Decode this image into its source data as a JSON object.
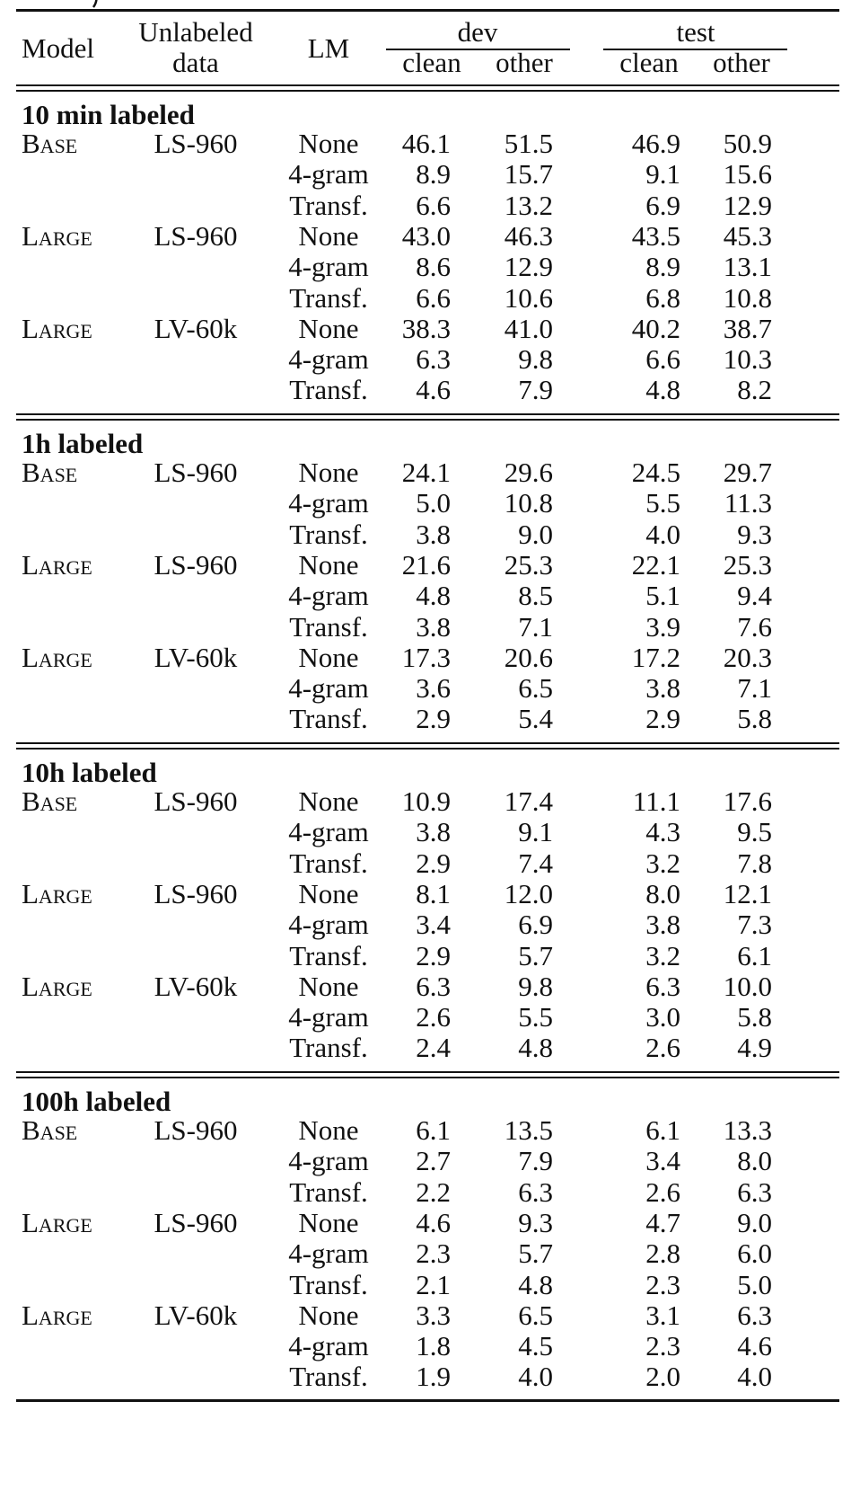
{
  "header": {
    "model": "Model",
    "unlabeled_1": "Unlabeled",
    "unlabeled_2": "data",
    "lm": "LM",
    "dev": "dev",
    "test": "test",
    "clean": "clean",
    "other": "other"
  },
  "sections": [
    {
      "title": "10 min labeled",
      "rows": [
        {
          "model": "Base",
          "data": "LS-960",
          "lm": "None",
          "dev_clean": "46.1",
          "dev_other": "51.5",
          "test_clean": "46.9",
          "test_other": "50.9"
        },
        {
          "model": "",
          "data": "",
          "lm": "4-gram",
          "dev_clean": "8.9",
          "dev_other": "15.7",
          "test_clean": "9.1",
          "test_other": "15.6"
        },
        {
          "model": "",
          "data": "",
          "lm": "Transf.",
          "dev_clean": "6.6",
          "dev_other": "13.2",
          "test_clean": "6.9",
          "test_other": "12.9"
        },
        {
          "model": "Large",
          "data": "LS-960",
          "lm": "None",
          "dev_clean": "43.0",
          "dev_other": "46.3",
          "test_clean": "43.5",
          "test_other": "45.3"
        },
        {
          "model": "",
          "data": "",
          "lm": "4-gram",
          "dev_clean": "8.6",
          "dev_other": "12.9",
          "test_clean": "8.9",
          "test_other": "13.1"
        },
        {
          "model": "",
          "data": "",
          "lm": "Transf.",
          "dev_clean": "6.6",
          "dev_other": "10.6",
          "test_clean": "6.8",
          "test_other": "10.8"
        },
        {
          "model": "Large",
          "data": "LV-60k",
          "lm": "None",
          "dev_clean": "38.3",
          "dev_other": "41.0",
          "test_clean": "40.2",
          "test_other": "38.7"
        },
        {
          "model": "",
          "data": "",
          "lm": "4-gram",
          "dev_clean": "6.3",
          "dev_other": "9.8",
          "test_clean": "6.6",
          "test_other": "10.3"
        },
        {
          "model": "",
          "data": "",
          "lm": "Transf.",
          "dev_clean": "4.6",
          "dev_other": "7.9",
          "test_clean": "4.8",
          "test_other": "8.2"
        }
      ]
    },
    {
      "title": "1h labeled",
      "rows": [
        {
          "model": "Base",
          "data": "LS-960",
          "lm": "None",
          "dev_clean": "24.1",
          "dev_other": "29.6",
          "test_clean": "24.5",
          "test_other": "29.7"
        },
        {
          "model": "",
          "data": "",
          "lm": "4-gram",
          "dev_clean": "5.0",
          "dev_other": "10.8",
          "test_clean": "5.5",
          "test_other": "11.3"
        },
        {
          "model": "",
          "data": "",
          "lm": "Transf.",
          "dev_clean": "3.8",
          "dev_other": "9.0",
          "test_clean": "4.0",
          "test_other": "9.3"
        },
        {
          "model": "Large",
          "data": "LS-960",
          "lm": "None",
          "dev_clean": "21.6",
          "dev_other": "25.3",
          "test_clean": "22.1",
          "test_other": "25.3"
        },
        {
          "model": "",
          "data": "",
          "lm": "4-gram",
          "dev_clean": "4.8",
          "dev_other": "8.5",
          "test_clean": "5.1",
          "test_other": "9.4"
        },
        {
          "model": "",
          "data": "",
          "lm": "Transf.",
          "dev_clean": "3.8",
          "dev_other": "7.1",
          "test_clean": "3.9",
          "test_other": "7.6"
        },
        {
          "model": "Large",
          "data": "LV-60k",
          "lm": "None",
          "dev_clean": "17.3",
          "dev_other": "20.6",
          "test_clean": "17.2",
          "test_other": "20.3"
        },
        {
          "model": "",
          "data": "",
          "lm": "4-gram",
          "dev_clean": "3.6",
          "dev_other": "6.5",
          "test_clean": "3.8",
          "test_other": "7.1"
        },
        {
          "model": "",
          "data": "",
          "lm": "Transf.",
          "dev_clean": "2.9",
          "dev_other": "5.4",
          "test_clean": "2.9",
          "test_other": "5.8"
        }
      ]
    },
    {
      "title": "10h labeled",
      "rows": [
        {
          "model": "Base",
          "data": "LS-960",
          "lm": "None",
          "dev_clean": "10.9",
          "dev_other": "17.4",
          "test_clean": "11.1",
          "test_other": "17.6"
        },
        {
          "model": "",
          "data": "",
          "lm": "4-gram",
          "dev_clean": "3.8",
          "dev_other": "9.1",
          "test_clean": "4.3",
          "test_other": "9.5"
        },
        {
          "model": "",
          "data": "",
          "lm": "Transf.",
          "dev_clean": "2.9",
          "dev_other": "7.4",
          "test_clean": "3.2",
          "test_other": "7.8"
        },
        {
          "model": "Large",
          "data": "LS-960",
          "lm": "None",
          "dev_clean": "8.1",
          "dev_other": "12.0",
          "test_clean": "8.0",
          "test_other": "12.1"
        },
        {
          "model": "",
          "data": "",
          "lm": "4-gram",
          "dev_clean": "3.4",
          "dev_other": "6.9",
          "test_clean": "3.8",
          "test_other": "7.3"
        },
        {
          "model": "",
          "data": "",
          "lm": "Transf.",
          "dev_clean": "2.9",
          "dev_other": "5.7",
          "test_clean": "3.2",
          "test_other": "6.1"
        },
        {
          "model": "Large",
          "data": "LV-60k",
          "lm": "None",
          "dev_clean": "6.3",
          "dev_other": "9.8",
          "test_clean": "6.3",
          "test_other": "10.0"
        },
        {
          "model": "",
          "data": "",
          "lm": "4-gram",
          "dev_clean": "2.6",
          "dev_other": "5.5",
          "test_clean": "3.0",
          "test_other": "5.8"
        },
        {
          "model": "",
          "data": "",
          "lm": "Transf.",
          "dev_clean": "2.4",
          "dev_other": "4.8",
          "test_clean": "2.6",
          "test_other": "4.9"
        }
      ]
    },
    {
      "title": "100h labeled",
      "rows": [
        {
          "model": "Base",
          "data": "LS-960",
          "lm": "None",
          "dev_clean": "6.1",
          "dev_other": "13.5",
          "test_clean": "6.1",
          "test_other": "13.3"
        },
        {
          "model": "",
          "data": "",
          "lm": "4-gram",
          "dev_clean": "2.7",
          "dev_other": "7.9",
          "test_clean": "3.4",
          "test_other": "8.0"
        },
        {
          "model": "",
          "data": "",
          "lm": "Transf.",
          "dev_clean": "2.2",
          "dev_other": "6.3",
          "test_clean": "2.6",
          "test_other": "6.3"
        },
        {
          "model": "Large",
          "data": "LS-960",
          "lm": "None",
          "dev_clean": "4.6",
          "dev_other": "9.3",
          "test_clean": "4.7",
          "test_other": "9.0"
        },
        {
          "model": "",
          "data": "",
          "lm": "4-gram",
          "dev_clean": "2.3",
          "dev_other": "5.7",
          "test_clean": "2.8",
          "test_other": "6.0"
        },
        {
          "model": "",
          "data": "",
          "lm": "Transf.",
          "dev_clean": "2.1",
          "dev_other": "4.8",
          "test_clean": "2.3",
          "test_other": "5.0"
        },
        {
          "model": "Large",
          "data": "LV-60k",
          "lm": "None",
          "dev_clean": "3.3",
          "dev_other": "6.5",
          "test_clean": "3.1",
          "test_other": "6.3"
        },
        {
          "model": "",
          "data": "",
          "lm": "4-gram",
          "dev_clean": "1.8",
          "dev_other": "4.5",
          "test_clean": "2.3",
          "test_other": "4.6"
        },
        {
          "model": "",
          "data": "",
          "lm": "Transf.",
          "dev_clean": "1.9",
          "dev_other": "4.0",
          "test_clean": "2.0",
          "test_other": "4.0"
        }
      ]
    }
  ]
}
